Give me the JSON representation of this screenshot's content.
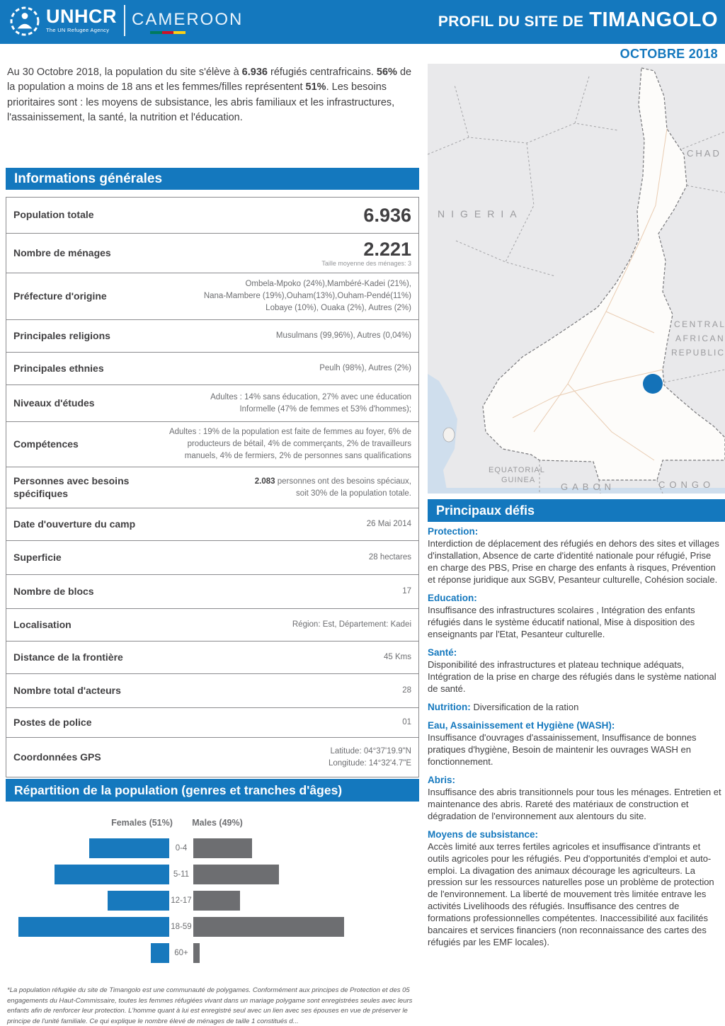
{
  "header": {
    "logo": {
      "org": "UNHCR",
      "tagline": "The UN Refugee Agency",
      "country": "CAMEROON"
    },
    "title_prefix": "PROFIL DU SITE DE",
    "title_site": "TIMANGOLO",
    "date": "OCTOBRE 2018"
  },
  "intro": {
    "p1": "Au 30 Octobre 2018, la population du site s'élève à ",
    "b1": "6.936",
    "p2": " réfugiés centrafricains. ",
    "b2": "56%",
    "p3": " de la population a moins de 18 ans et les femmes/filles représentent ",
    "b3": "51%",
    "p4": ". Les besoins prioritaires sont : les moyens de subsistance, les abris familiaux et les infrastructures, l'assainissement, la santé, la nutrition et l'éducation."
  },
  "info_table": {
    "title": "Informations générales",
    "rows": [
      {
        "label": "Population totale",
        "value_big": "6.936"
      },
      {
        "label": "Nombre de ménages",
        "value_big": "2.221",
        "value_sub": "Taille moyenne des ménages: 3"
      },
      {
        "label": "Préfecture d'origine",
        "value_lines": [
          "Ombela-Mpoko (24%),Mambéré-Kadei (21%),",
          "Nana-Mambere (19%),Ouham(13%),Ouham-Pendé(11%)",
          "Lobaye (10%), Ouaka (2%), Autres (2%)"
        ]
      },
      {
        "label": "Principales religions",
        "value_lines": [
          "Musulmans (99,96%), Autres (0,04%)"
        ]
      },
      {
        "label": "Principales ethnies",
        "value_lines": [
          "Peulh (98%), Autres (2%)"
        ]
      },
      {
        "label": "Niveaux d'études",
        "value_lines": [
          "Adultes : 14% sans éducation, 27% avec une éducation",
          "Informelle (47% de femmes et 53% d'hommes);"
        ]
      },
      {
        "label": "Compétences",
        "value_lines": [
          "Adultes : 19% de la population est faite de femmes au foyer, 6% de",
          "producteurs de bétail, 4% de commerçants, 2% de travailleurs",
          "manuels, 4% de fermiers, 2% de personnes sans qualifications"
        ]
      },
      {
        "label": "Personnes avec besoins spécifiques",
        "bold_lead": "2.083",
        "value_lines": [
          "personnes ont des besoins spéciaux,",
          "soit 30% de la population totale."
        ]
      },
      {
        "label": "Date d'ouverture du camp",
        "value_lines": [
          "26 Mai 2014"
        ]
      },
      {
        "label": "Superficie",
        "value_lines": [
          "28 hectares"
        ]
      },
      {
        "label": "Nombre de blocs",
        "value_lines": [
          "17"
        ]
      },
      {
        "label": "Localisation",
        "value_lines": [
          "Région: Est, Département: Kadei"
        ]
      },
      {
        "label": "Distance de la frontière",
        "value_lines": [
          "45 Kms"
        ]
      },
      {
        "label": "Nombre total d'acteurs",
        "value_lines": [
          "28"
        ]
      },
      {
        "label": "Postes de police",
        "value_lines": [
          "01"
        ]
      },
      {
        "label": "Coordonnées GPS",
        "value_lines": [
          "Latitude: 04°37'19.9\"N",
          "Longitude: 14°32'4.7\"E"
        ]
      }
    ]
  },
  "chart_data": {
    "type": "bar",
    "subtype": "population-pyramid-horizontal",
    "title": "Répartition de la population (genres et tranches d'âges)",
    "categories": [
      "0-4",
      "5-11",
      "12-17",
      "18-59",
      "60+"
    ],
    "series": [
      {
        "name": "Females (51%)",
        "total_share_pct": 51,
        "color": "#1879bd",
        "bar_rel_length_pct": [
          53,
          76,
          41,
          100,
          12
        ]
      },
      {
        "name": "Males (49%)",
        "total_share_pct": 49,
        "color": "#6d6e71",
        "bar_rel_length_pct": [
          39,
          57,
          31,
          100,
          4
        ]
      }
    ],
    "axis": "none (no numeric axis or data labels shown; bar lengths are relative, % of longest bar per series)",
    "legend_position": "top"
  },
  "map": {
    "labels": {
      "nigeria": "NIGERIA",
      "chad": "CHAD",
      "car": [
        "CENTRAL",
        "AFRICAN",
        "REPUBLIC"
      ],
      "eq_guinea": [
        "EQUATORIAL",
        "GUINEA"
      ],
      "gabon": "GABON",
      "congo": "CONGO"
    },
    "marker_meaning": "Timangolo site location (East Cameroon, near CAR border)",
    "marker_color": "#1472b8"
  },
  "challenges": {
    "title": "Principaux défis",
    "sections": [
      {
        "heading": "Protection:",
        "inline": false,
        "text": "Interdiction de déplacement des réfugiés en dehors des sites et villages d'installation, Absence de carte d'identité nationale pour réfugié, Prise en charge des PBS, Prise en charge des enfants à risques, Prévention et réponse juridique aux SGBV, Pesanteur culturelle, Cohésion sociale."
      },
      {
        "heading": "Education:",
        "inline": false,
        "text": "Insuffisance des infrastructures scolaires , Intégration des enfants réfugiés dans le système éducatif national, Mise à disposition des enseignants par l'Etat, Pesanteur culturelle."
      },
      {
        "heading": "Santé:",
        "inline": false,
        "text": "Disponibilité des infrastructures et plateau technique adéquats, Intégration de la prise en charge des réfugiés dans le système national de santé."
      },
      {
        "heading": "Nutrition:",
        "inline": true,
        "text": "Diversification de la ration"
      },
      {
        "heading": "Eau, Assainissement et Hygiène (WASH):",
        "inline": false,
        "text": "Insuffisance d'ouvrages d'assainissement, Insuffisance de bonnes pratiques d'hygiène, Besoin de maintenir les ouvrages WASH en fonctionnement."
      },
      {
        "heading": "Abris:",
        "inline": false,
        "text": "Insuffisance des abris transitionnels pour tous les ménages. Entretien et maintenance des abris. Rareté des matériaux de construction et dégradation de l'environnement aux alentours du site."
      },
      {
        "heading": "Moyens de subsistance:",
        "inline": false,
        "text": "Accès limité aux terres fertiles agricoles et insuffisance d'intrants et outils agricoles pour les réfugiés. Peu d'opportunités d'emploi et auto-emploi. La divagation des animaux décourage les agriculteurs. La pression sur les ressources naturelles pose un problème de protection de l'environnement. La liberté de mouvement très limitée entrave les activités Livelihoods des réfugiés. Insuffisance des centres de formations professionnelles compétentes. Inaccessibilité aux facilités bancaires et services financiers (non reconnaissance des cartes des réfugiés par les EMF locales)."
      }
    ]
  },
  "footnote": {
    "text": "*La population réfugiée du site de Timangolo est une communauté de polygames. Conformément aux principes de Protection et des 05 engagements du Haut-Commissaire, toutes les femmes réfugiées vivant dans un mariage polygame sont enregistrées seules avec leurs enfants afin de renforcer leur protection. L'homme quant à lui est enregistré seul avec un lien avec ses épouses en vue de préserver le principe de l'unité familiale. Ce qui explique le nombre élevé de ménages de taille 1 constitués d..."
  },
  "colors": {
    "primary_blue": "#1478be",
    "female_bar": "#1879bd",
    "male_bar": "#6d6e71",
    "flag_green": "#007a5e",
    "flag_red": "#ce1126",
    "flag_yellow": "#fcd116"
  }
}
